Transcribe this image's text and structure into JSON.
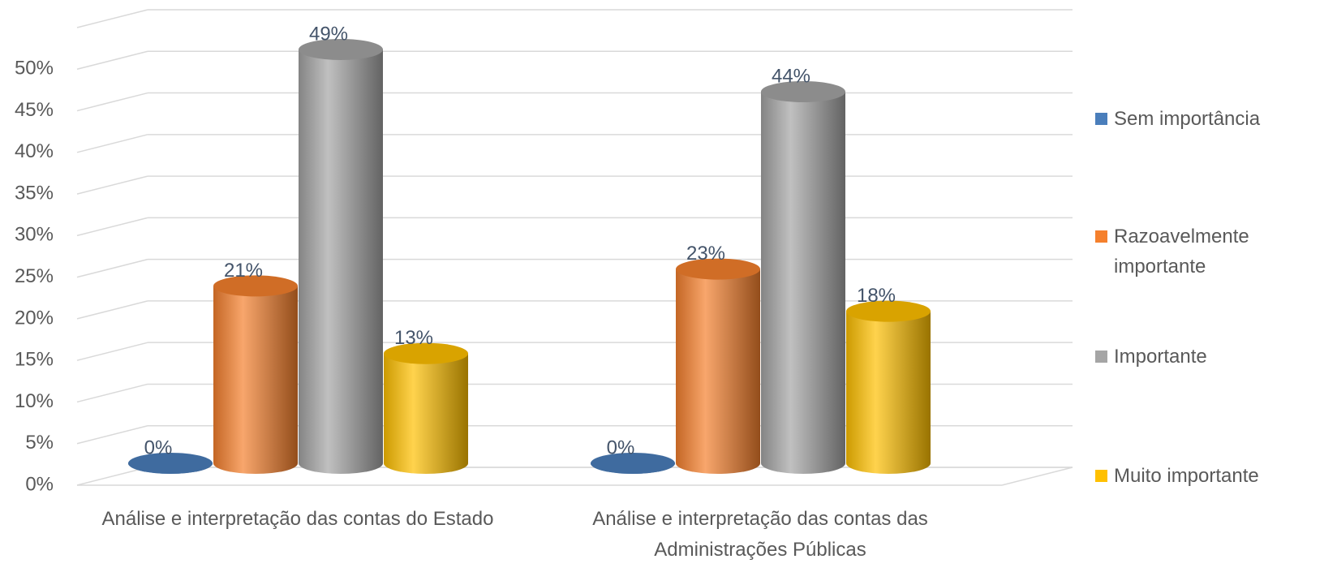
{
  "chart_data": {
    "type": "bar3d",
    "categories": [
      "Análise e interpretação das contas do Estado",
      "Análise e interpretação das contas das Administrações Públicas"
    ],
    "series": [
      {
        "name": "Sem importância",
        "color": "#4a7ebb",
        "values": [
          0,
          0
        ],
        "value_labels": [
          "0%",
          "0%"
        ]
      },
      {
        "name": "Razoavelmente importante",
        "color": "#f5802d",
        "values": [
          21,
          23
        ],
        "value_labels": [
          "21%",
          "23%"
        ]
      },
      {
        "name": "Importante",
        "color": "#a5a5a5",
        "values": [
          49,
          44
        ],
        "value_labels": [
          "49%",
          "44%"
        ]
      },
      {
        "name": "Muito importante",
        "color": "#ffc000",
        "values": [
          13,
          18
        ],
        "value_labels": [
          "13%",
          "18%"
        ]
      }
    ],
    "ylim": [
      0,
      55
    ],
    "yticks": [
      {
        "value": 0,
        "label": "0%"
      },
      {
        "value": 5,
        "label": "5%"
      },
      {
        "value": 10,
        "label": "10%"
      },
      {
        "value": 15,
        "label": "15%"
      },
      {
        "value": 20,
        "label": "20%"
      },
      {
        "value": 25,
        "label": "25%"
      },
      {
        "value": 30,
        "label": "30%"
      },
      {
        "value": 35,
        "label": "35%"
      },
      {
        "value": 40,
        "label": "40%"
      },
      {
        "value": 45,
        "label": "45%"
      },
      {
        "value": 50,
        "label": "50%"
      }
    ],
    "grid": true,
    "legend": "right"
  }
}
